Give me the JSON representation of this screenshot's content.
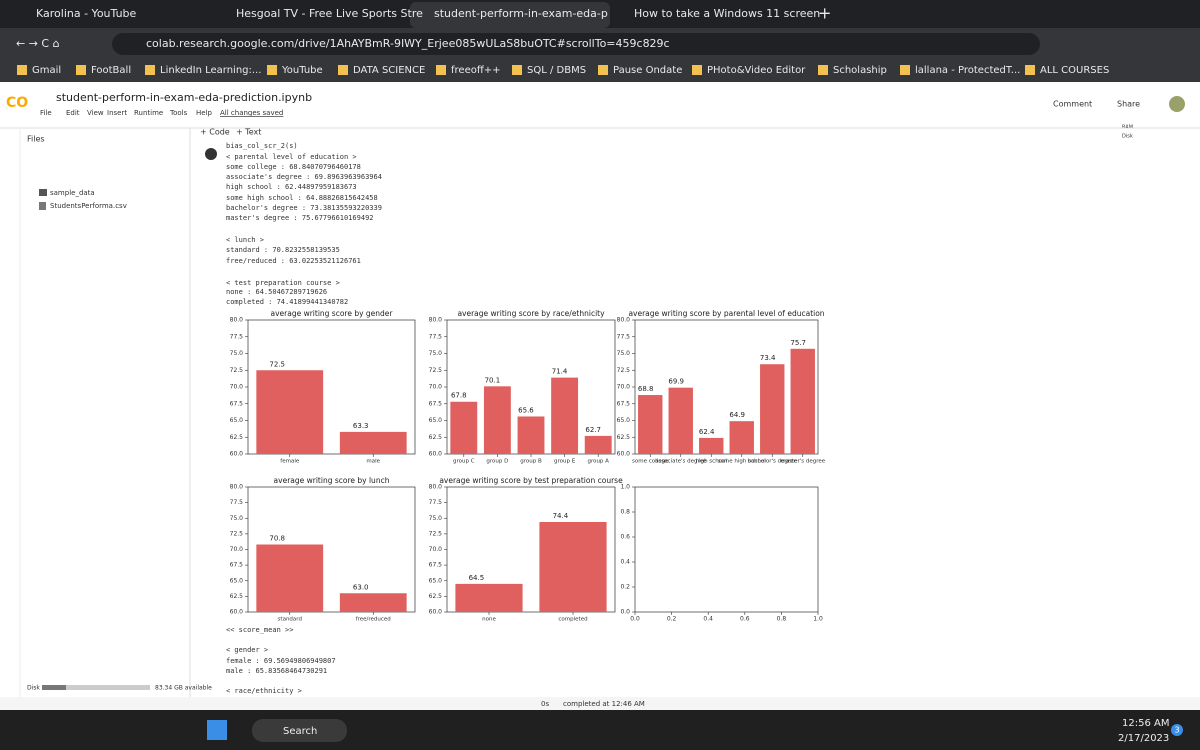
{
  "browser": {
    "tabs": [
      "Karolina - YouTube",
      "Hesgoal TV - Free Live Sports Stre",
      "student-perform-in-exam-eda-p",
      "How to take a Windows 11 screen"
    ],
    "url": "colab.research.google.com/drive/1AhAYBmR-9IWY_Erjee085wULaS8buOTC#scrollTo=459c829c",
    "bookmarks": [
      "Gmail",
      "FootBall",
      "LinkedIn Learning:...",
      "YouTube",
      "DATA SCIENCE",
      "freeoff++",
      "SQL / DBMS",
      "Pause Ondate",
      "PHoto&Video Editor",
      "Scholaship",
      "lallana - ProtectedT...",
      "ALL COURSES"
    ]
  },
  "notebook": {
    "title": "student-perform-in-exam-eda-prediction.ipynb",
    "menu": [
      "File",
      "Edit",
      "View",
      "Insert",
      "Runtime",
      "Tools",
      "Help"
    ],
    "save_status": "All changes saved",
    "actions": [
      "Comment",
      "Share"
    ],
    "toolbar": [
      "+ Code",
      "+ Text"
    ],
    "resources": [
      "RAM",
      "Disk"
    ]
  },
  "files": {
    "title": "Files",
    "items": [
      "sample_data",
      "StudentsPerforma.csv"
    ],
    "disk_label": "Disk",
    "disk_available": "83.34 GB available"
  },
  "output": {
    "lines": [
      "bias_col_scr_2(s)",
      "< parental level of education >",
      "some college :  68.84070796460178",
      "associate's degree :  69.8963963963964",
      "high school :  62.44897959183673",
      "some high school :  64.88826815642458",
      "bachelor's degree :  73.38135593220339",
      "master's degree :  75.67796610169492",
      "< lunch >",
      "standard :  70.8232558139535",
      "free/reduced :  63.02253521126761",
      "< test preparation course >",
      "none :  64.50467289719626",
      "completed :  74.41899441340782",
      "<< score_mean >>",
      "< gender >",
      "female :  69.56949806949807",
      "male :  65.83568464730291",
      "< race/ethnicity >"
    ]
  },
  "chart_data": [
    {
      "type": "bar",
      "title": "average writing score by gender",
      "categories": [
        "female",
        "male"
      ],
      "values": [
        72.5,
        63.3
      ],
      "color": "#e0605f",
      "ylim": [
        60,
        80
      ],
      "yticks": [
        {
          "value": 60,
          "label": "60.0"
        },
        62.5,
        {
          "value": 65,
          "label": "65.0"
        },
        67.5,
        {
          "value": 70,
          "label": "70.0"
        },
        72.5,
        {
          "value": 75,
          "label": "75.0"
        },
        77.5,
        {
          "value": 80,
          "label": "80.0"
        }
      ]
    },
    {
      "type": "bar",
      "title": "average writing score by race/ethnicity",
      "categories": [
        "group C",
        "group D",
        "group B",
        "group E",
        "group A"
      ],
      "values": [
        67.8,
        70.1,
        65.6,
        71.4,
        62.7
      ],
      "color": "#e0605f",
      "ylim": [
        60,
        80
      ],
      "yticks": [
        {
          "value": 60,
          "label": "60.0"
        },
        62.5,
        {
          "value": 65,
          "label": "65.0"
        },
        67.5,
        {
          "value": 70,
          "label": "70.0"
        },
        72.5,
        {
          "value": 75,
          "label": "75.0"
        },
        77.5,
        {
          "value": 80,
          "label": "80.0"
        }
      ]
    },
    {
      "type": "bar",
      "title": "average writing score by parental level of education",
      "categories": [
        "some college",
        "associate's degree",
        "high school",
        "some high school",
        "bachelor's degree",
        "master's degree"
      ],
      "values": [
        68.8,
        69.9,
        62.4,
        64.9,
        73.4,
        75.7
      ],
      "color": "#e0605f",
      "ylim": [
        60,
        80
      ],
      "yticks": [
        {
          "value": 60,
          "label": "60.0"
        },
        62.5,
        {
          "value": 65,
          "label": "65.0"
        },
        67.5,
        {
          "value": 70,
          "label": "70.0"
        },
        72.5,
        {
          "value": 75,
          "label": "75.0"
        },
        77.5,
        {
          "value": 80,
          "label": "80.0"
        }
      ]
    },
    {
      "type": "bar",
      "title": "average writing score by lunch",
      "categories": [
        "standard",
        "free/reduced"
      ],
      "values": [
        70.8,
        63
      ],
      "value_labels": [
        "70.8",
        "63.0"
      ],
      "color": "#e0605f",
      "ylim": [
        60,
        80
      ],
      "yticks": [
        {
          "value": 60,
          "label": "60.0"
        },
        62.5,
        {
          "value": 65,
          "label": "65.0"
        },
        67.5,
        {
          "value": 70,
          "label": "70.0"
        },
        72.5,
        {
          "value": 75,
          "label": "75.0"
        },
        77.5,
        {
          "value": 80,
          "label": "80.0"
        }
      ]
    },
    {
      "type": "bar",
      "title": "average writing score by test preparation course",
      "categories": [
        "none",
        "completed"
      ],
      "values": [
        64.5,
        74.4
      ],
      "color": "#e0605f",
      "ylim": [
        60,
        80
      ],
      "yticks": [
        {
          "value": 60,
          "label": "60.0"
        },
        62.5,
        {
          "value": 65,
          "label": "65.0"
        },
        67.5,
        {
          "value": 70,
          "label": "70.0"
        },
        72.5,
        {
          "value": 75,
          "label": "75.0"
        },
        77.5,
        {
          "value": 80,
          "label": "80.0"
        }
      ]
    },
    {
      "type": "scatter",
      "xlim": [
        0,
        1
      ],
      "ylim": [
        0,
        1
      ],
      "xticks": [
        {
          "value": 0,
          "label": "0.0"
        },
        0.2,
        0.4,
        0.6,
        0.8,
        {
          "value": 1,
          "label": "1.0"
        }
      ],
      "yticks": [
        {
          "value": 0,
          "label": "0.0"
        },
        0.2,
        0.4,
        0.6,
        0.8,
        {
          "value": 1,
          "label": "1.0"
        }
      ]
    }
  ],
  "status": {
    "duration": "0s",
    "message": "completed at 12:46 AM"
  },
  "taskbar": {
    "search": "Search",
    "time": "12:56 AM",
    "date": "2/17/2023",
    "badge": "3"
  }
}
